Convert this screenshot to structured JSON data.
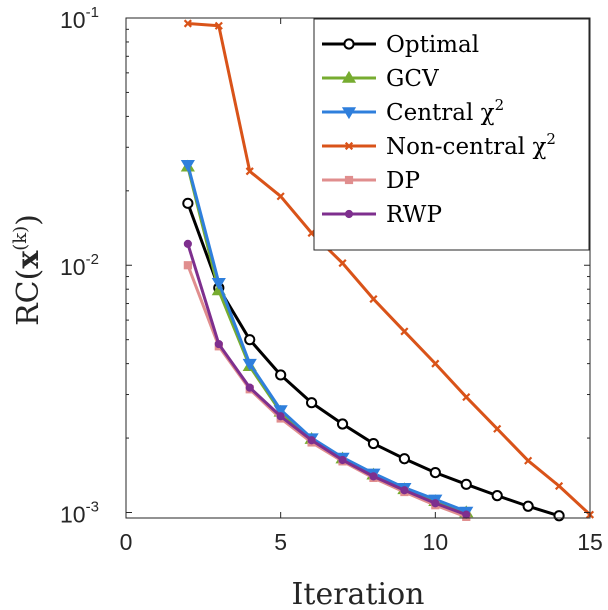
{
  "chart_data": {
    "type": "line",
    "title": "",
    "xlabel": "Iteration",
    "ylabel": "RC(x(k))",
    "ylabel_parts": {
      "base": "RC(",
      "bold": "x",
      "sup": "(k)",
      "close": ")"
    },
    "xscale": "linear",
    "yscale": "log",
    "xlim": [
      0,
      15
    ],
    "ylim": [
      0.00095,
      0.1
    ],
    "grid": false,
    "legend_position": "top-right",
    "x_ticks": [
      {
        "value": 0,
        "label": "0"
      },
      {
        "value": 5,
        "label": "5"
      },
      {
        "value": 10,
        "label": "10"
      },
      {
        "value": 15,
        "label": "15"
      }
    ],
    "y_ticks": [
      {
        "value": 0.1,
        "base": "10",
        "exp": "-1"
      },
      {
        "value": 0.01,
        "base": "10",
        "exp": "-2"
      },
      {
        "value": 0.001,
        "base": "10",
        "exp": "-3"
      }
    ],
    "series": [
      {
        "name": "Optimal",
        "label_base": "Optimal",
        "label_sup": "",
        "color": "#000000",
        "marker": "circle-open",
        "x": [
          2,
          3,
          4,
          5,
          6,
          7,
          8,
          9,
          10,
          11,
          12,
          13,
          14
        ],
        "y": [
          0.0178,
          0.0081,
          0.005,
          0.0036,
          0.00278,
          0.00228,
          0.0019,
          0.00165,
          0.00145,
          0.0013,
          0.00117,
          0.00106,
          0.00097
        ]
      },
      {
        "name": "GCV",
        "label_base": "GCV",
        "label_sup": "",
        "color": "#77ac30",
        "marker": "triangle-up",
        "x": [
          2,
          3,
          4,
          5,
          6,
          7,
          8,
          9,
          10,
          11
        ],
        "y": [
          0.025,
          0.0079,
          0.0039,
          0.00255,
          0.00198,
          0.00165,
          0.00142,
          0.00124,
          0.00111,
          0.001
        ]
      },
      {
        "name": "Central χ2",
        "label_base": "Central χ",
        "label_sup": "2",
        "color": "#2f7fdc",
        "marker": "triangle-down",
        "x": [
          2,
          3,
          4,
          5,
          6,
          7,
          8,
          9,
          10,
          11
        ],
        "y": [
          0.0255,
          0.0085,
          0.004,
          0.0026,
          0.002,
          0.00167,
          0.00144,
          0.00126,
          0.00113,
          0.00101
        ]
      },
      {
        "name": "Non-central χ2",
        "label_base": "Non-central χ",
        "label_sup": "2",
        "color": "#d95319",
        "marker": "x",
        "x": [
          2,
          3,
          4,
          5,
          6,
          7,
          8,
          9,
          10,
          11,
          12,
          13,
          14,
          15
        ],
        "y": [
          0.095,
          0.093,
          0.024,
          0.019,
          0.0135,
          0.0102,
          0.0073,
          0.0054,
          0.004,
          0.00293,
          0.00218,
          0.00162,
          0.00128,
          0.00098
        ]
      },
      {
        "name": "DP",
        "label_base": "DP",
        "label_sup": "",
        "color": "#e08e8e",
        "marker": "square",
        "x": [
          2,
          3,
          4,
          5,
          6,
          7,
          8,
          9,
          10,
          11
        ],
        "y": [
          0.01,
          0.0047,
          0.00315,
          0.0024,
          0.00192,
          0.00161,
          0.00138,
          0.00121,
          0.00107,
          0.00096
        ]
      },
      {
        "name": "RWP",
        "label_base": "RWP",
        "label_sup": "",
        "color": "#7e2f8e",
        "marker": "circle-filled",
        "x": [
          2,
          3,
          4,
          5,
          6,
          7,
          8,
          9,
          10,
          11
        ],
        "y": [
          0.0122,
          0.0048,
          0.0032,
          0.00245,
          0.00196,
          0.00163,
          0.0014,
          0.00123,
          0.00109,
          0.00098
        ]
      }
    ]
  }
}
